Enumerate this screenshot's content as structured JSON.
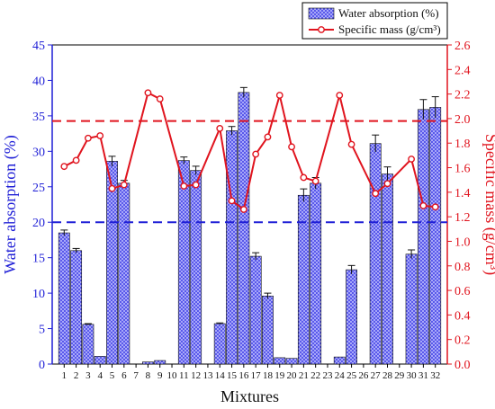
{
  "chart_data": {
    "type": "bar",
    "xlabel": "Mixtures",
    "ylabel": "Water absorption (%)",
    "y2label": "Specific mass (g/cm³)",
    "categories": [
      "1",
      "2",
      "3",
      "4",
      "5",
      "6",
      "7",
      "8",
      "9",
      "10",
      "11",
      "12",
      "13",
      "14",
      "15",
      "16",
      "17",
      "18",
      "19",
      "20",
      "21",
      "22",
      "23",
      "24",
      "25",
      "26",
      "27",
      "28",
      "29",
      "30",
      "31",
      "32"
    ],
    "ylim": [
      0,
      45
    ],
    "yticks": [
      0,
      5,
      10,
      15,
      20,
      25,
      30,
      35,
      40,
      45
    ],
    "y2lim": [
      0,
      2.6
    ],
    "y2ticks": [
      "0.0",
      "0.2",
      "0.4",
      "0.6",
      "0.8",
      "1.0",
      "1.2",
      "1.4",
      "1.6",
      "1.8",
      "2.0",
      "2.2",
      "2.4",
      "2.6"
    ],
    "legend_position": "top-right",
    "grid": false,
    "series": [
      {
        "name": "Water absorption (%)",
        "axis": "left",
        "kind": "bar",
        "color": "#2a2ad0",
        "values": [
          18.5,
          16.0,
          5.6,
          1.1,
          28.6,
          25.5,
          0.0,
          0.3,
          0.5,
          0.0,
          28.7,
          27.3,
          0.0,
          5.7,
          32.9,
          38.3,
          15.2,
          9.6,
          0.9,
          0.8,
          23.8,
          25.5,
          0.0,
          1.0,
          13.3,
          0.0,
          31.1,
          26.8,
          0.0,
          15.5,
          35.9,
          36.2
        ],
        "errors": [
          0.4,
          0.3,
          0.1,
          0.0,
          0.7,
          0.4,
          0.0,
          0.0,
          0.0,
          0.0,
          0.5,
          0.6,
          0.0,
          0.1,
          0.6,
          0.7,
          0.5,
          0.4,
          0.0,
          0.0,
          0.9,
          0.8,
          0.0,
          0.0,
          0.6,
          0.0,
          1.2,
          1.0,
          0.0,
          0.6,
          1.4,
          1.5
        ]
      },
      {
        "name": "Specific mass (g/cm³)",
        "axis": "right",
        "kind": "line",
        "color": "#e0141e",
        "x": [
          1,
          2,
          3,
          4,
          5,
          6,
          8,
          9,
          11,
          12,
          14,
          15,
          16,
          17,
          18,
          19,
          20,
          21,
          22,
          24,
          25,
          27,
          28,
          30,
          31,
          32
        ],
        "values": [
          1.61,
          1.66,
          1.84,
          1.86,
          1.43,
          1.46,
          2.21,
          2.16,
          1.45,
          1.46,
          1.92,
          1.33,
          1.26,
          1.71,
          1.85,
          2.19,
          1.77,
          1.52,
          1.49,
          2.19,
          1.79,
          1.39,
          1.47,
          1.67,
          1.29,
          1.28
        ]
      }
    ],
    "reference_lines": [
      {
        "axis": "left",
        "value": 20,
        "color": "#1f1fd6",
        "style": "dashed"
      },
      {
        "axis": "right",
        "value": 1.98,
        "color": "#e0141e",
        "style": "dashed"
      }
    ]
  }
}
